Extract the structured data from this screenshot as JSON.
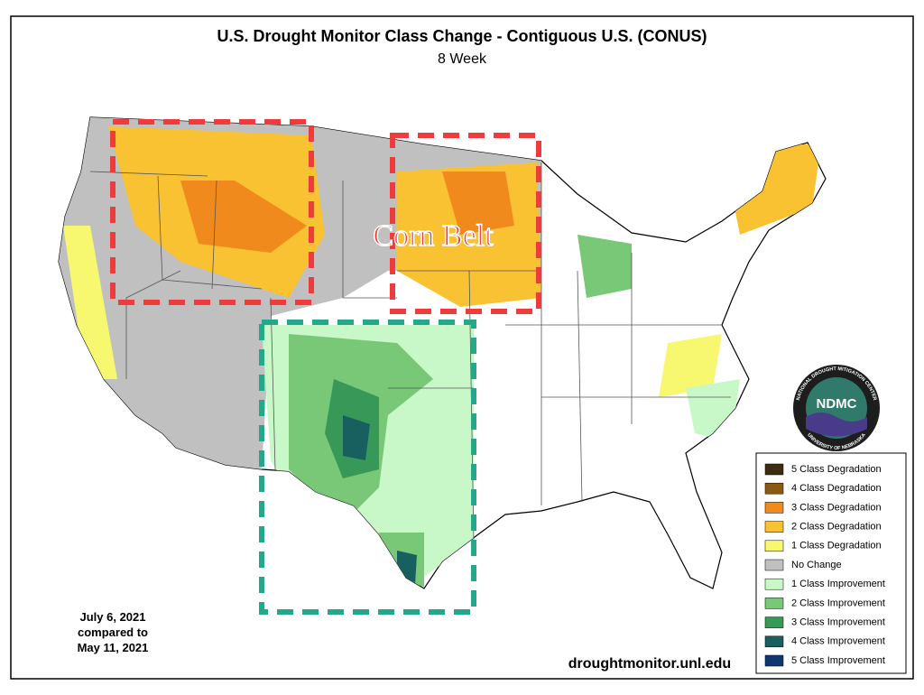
{
  "header": {
    "title": "U.S. Drought Monitor Class Change - Contiguous U.S. (CONUS)",
    "subtitle": "8 Week"
  },
  "legend": {
    "items": [
      {
        "label": "5 Class Degradation",
        "color": "#3f2a12"
      },
      {
        "label": "4 Class Degradation",
        "color": "#8a5a14"
      },
      {
        "label": "3 Class Degradation",
        "color": "#f08a1c"
      },
      {
        "label": "2 Class Degradation",
        "color": "#f8c232"
      },
      {
        "label": "1 Class Degradation",
        "color": "#f8f870"
      },
      {
        "label": "No Change",
        "color": "#c0c0c0"
      },
      {
        "label": "1 Class Improvement",
        "color": "#c8f8c8"
      },
      {
        "label": "2 Class Improvement",
        "color": "#78c878"
      },
      {
        "label": "3 Class Improvement",
        "color": "#389858"
      },
      {
        "label": "4 Class Improvement",
        "color": "#186060"
      },
      {
        "label": "5 Class Improvement",
        "color": "#103870"
      }
    ]
  },
  "dates": {
    "line1": "July 6, 2021",
    "line2": "compared to",
    "line3": "May 11, 2021"
  },
  "source": "droughtmonitor.unl.edu",
  "annotation": "Corn Belt",
  "logo": {
    "name": "NDMC",
    "ring_top": "NATIONAL DROUGHT MITIGATION CENTER",
    "ring_bottom": "UNIVERSITY OF NEBRASKA"
  }
}
